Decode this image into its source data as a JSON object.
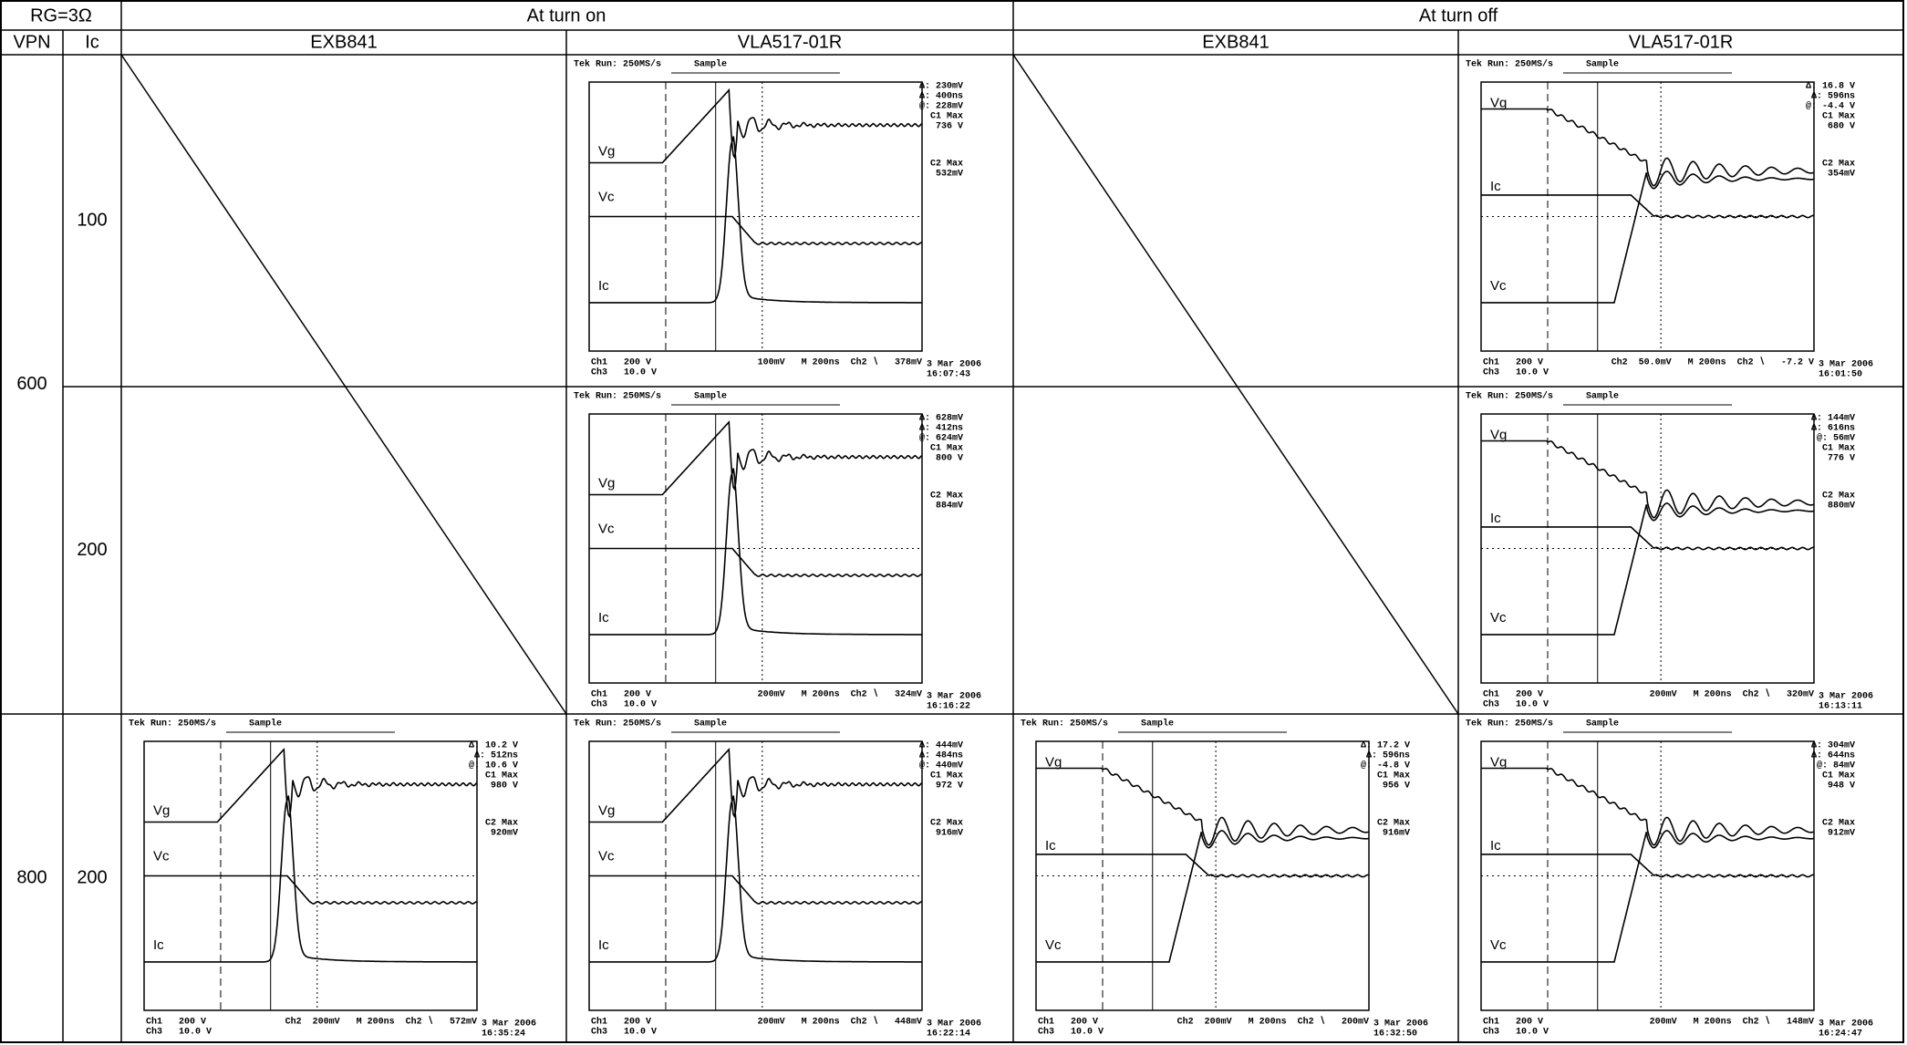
{
  "header": {
    "rg": "RG=3Ω",
    "turn_on": "At turn on",
    "turn_off": "At turn off",
    "vpn": "VPN",
    "ic": "Ic",
    "columns": {
      "exb_on": "EXB841",
      "vla_on": "VLA517-01R",
      "exb_off": "EXB841",
      "vla_off": "VLA517-01R"
    }
  },
  "table": {
    "rows": [
      {
        "vpn": "600",
        "ic": "100",
        "cells": {
          "vla_on": {
            "tek": "Tek Run: 250MS/s",
            "mode": "Sample",
            "readouts": [
              "Δ: 230mV",
              "Δ: 400ns",
              "@: 228mV",
              "C1 Max",
              "736 V",
              "C2 Max",
              "532mV"
            ],
            "traces": [
              "Vg",
              "Vc",
              "Ic"
            ],
            "ch1": "Ch1   200 V",
            "ch3": "Ch3   10.0 V",
            "scale": "100mV   M 200ns  Ch2 ∖   378mV",
            "date": "3 Mar 2006",
            "time": "16:07:43"
          },
          "vla_off": {
            "tek": "Tek Run: 250MS/s",
            "mode": "Sample",
            "readouts": [
              "Δ: 16.8 V",
              "Δ: 596ns",
              "@: -4.4 V",
              "C1 Max",
              "680 V",
              "C2 Max",
              "354mV"
            ],
            "traces": [
              "Vg",
              "Ic",
              "Vc"
            ],
            "ch1": "Ch1   200 V",
            "ch3": "Ch3   10.0 V",
            "scale": "Ch2  50.0mV   M 200ns  Ch2 ∖   -7.2 V",
            "date": "3 Mar 2006",
            "time": "16:01:50"
          }
        }
      },
      {
        "ic": "200",
        "cells": {
          "vla_on": {
            "tek": "Tek Run: 250MS/s",
            "mode": "Sample",
            "readouts": [
              "Δ: 628mV",
              "Δ: 412ns",
              "@: 624mV",
              "C1 Max",
              "800 V",
              "C2 Max",
              "884mV"
            ],
            "traces": [
              "Vg",
              "Vc",
              "Ic"
            ],
            "ch1": "Ch1   200 V",
            "ch3": "Ch3   10.0 V",
            "scale": "200mV   M 200ns  Ch2 ∖   324mV",
            "date": "3 Mar 2006",
            "time": "16:16:22"
          },
          "vla_off": {
            "tek": "Tek Run: 250MS/s",
            "mode": "Sample",
            "readouts": [
              "Δ: 144mV",
              "Δ: 616ns",
              "@: 56mV",
              "C1 Max",
              "776 V",
              "C2 Max",
              "880mV"
            ],
            "traces": [
              "Vg",
              "Ic",
              "Vc"
            ],
            "ch1": "Ch1   200 V",
            "ch3": "Ch3   10.0 V",
            "scale": "200mV   M 200ns  Ch2 ∖   320mV",
            "date": "3 Mar 2006",
            "time": "16:13:11"
          }
        }
      },
      {
        "vpn": "800",
        "ic": "200",
        "cells": {
          "exb_on": {
            "tek": "Tek Run: 250MS/s",
            "mode": "Sample",
            "readouts": [
              "Δ: 10.2 V",
              "Δ: 512ns",
              "@: 10.6 V",
              "C1 Max",
              "980 V",
              "C2 Max",
              "920mV"
            ],
            "traces": [
              "Vg",
              "Vc",
              "Ic"
            ],
            "ch1": "Ch1   200 V",
            "ch3": "Ch3   10.0 V",
            "scale": "Ch2  200mV   M 200ns  Ch2 ∖   572mV",
            "date": "3 Mar 2006",
            "time": "16:35:24"
          },
          "vla_on": {
            "tek": "Tek Run: 250MS/s",
            "mode": "Sample",
            "readouts": [
              "Δ: 444mV",
              "Δ: 484ns",
              "@: 440mV",
              "C1 Max",
              "972 V",
              "C2 Max",
              "916mV"
            ],
            "traces": [
              "Vg",
              "Vc",
              "Ic"
            ],
            "ch1": "Ch1   200 V",
            "ch3": "Ch3   10.0 V",
            "scale": "200mV   M 200ns  Ch2 ∖   448mV",
            "date": "3 Mar 2006",
            "time": "16:22:14"
          },
          "exb_off": {
            "tek": "Tek Run: 250MS/s",
            "mode": "Sample",
            "readouts": [
              "Δ: 17.2 V",
              "Δ: 596ns",
              "@: -4.8 V",
              "C1 Max",
              "956 V",
              "C2 Max",
              "916mV"
            ],
            "traces": [
              "Vg",
              "Ic",
              "Vc"
            ],
            "ch1": "Ch1   200 V",
            "ch3": "Ch3   10.0 V",
            "scale": "Ch2  200mV   M 200ns  Ch2 ∖   200mV",
            "date": "3 Mar 2006",
            "time": "16:32:50"
          },
          "vla_off": {
            "tek": "Tek Run: 250MS/s",
            "mode": "Sample",
            "readouts": [
              "Δ: 304mV",
              "Δ: 644ns",
              "@: 84mV",
              "C1 Max",
              "948 V",
              "C2 Max",
              "912mV"
            ],
            "traces": [
              "Vg",
              "Ic",
              "Vc"
            ],
            "ch1": "Ch1   200 V",
            "ch3": "Ch3   10.0 V",
            "scale": "200mV   M 200ns  Ch2 ∖   148mV",
            "date": "3 Mar 2006",
            "time": "16:24:47"
          }
        }
      }
    ]
  }
}
